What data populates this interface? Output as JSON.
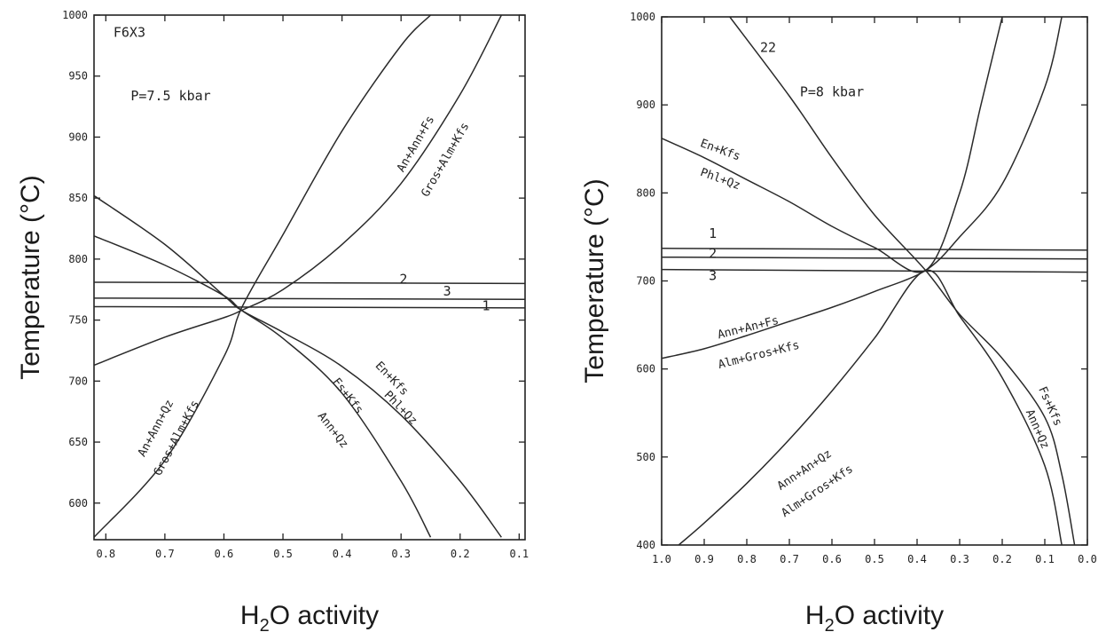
{
  "chart_data": [
    {
      "type": "line",
      "title": "",
      "xlabel_main": "H",
      "xlabel_sub": "2",
      "xlabel_rest": "O activity",
      "ylabel": "Temperature (°C)",
      "xlim": [
        0.82,
        0.09
      ],
      "ylim": [
        570,
        1000
      ],
      "x_ticks": [
        0.8,
        0.7,
        0.6,
        0.5,
        0.4,
        0.3,
        0.2,
        0.1
      ],
      "x_tick_labels": [
        "0.8",
        "0.7",
        "0.6",
        "0.5",
        "0.4",
        "0.3",
        "0.2",
        "0.1"
      ],
      "y_ticks": [
        600,
        650,
        700,
        750,
        800,
        850,
        900,
        950,
        1000
      ],
      "y_tick_labels": [
        "600",
        "650",
        "700",
        "750",
        "800",
        "850",
        "900",
        "950",
        "1000"
      ],
      "annotations": [
        {
          "text": "F6X3",
          "x": 0.76,
          "y": 982,
          "rotate": 0,
          "cls": "inner"
        },
        {
          "text": "P=7.5 kbar",
          "x": 0.69,
          "y": 930,
          "rotate": 0,
          "cls": "inner"
        },
        {
          "text": "2",
          "x": 0.296,
          "y": 780,
          "rotate": 0,
          "cls": "inner"
        },
        {
          "text": "3",
          "x": 0.222,
          "y": 770,
          "rotate": 0,
          "cls": "inner"
        },
        {
          "text": "1",
          "x": 0.156,
          "y": 758,
          "rotate": 0,
          "cls": "inner"
        },
        {
          "text": "An+Ann+Fs",
          "x": 0.27,
          "y": 893,
          "rotate": -60,
          "cls": "rxn"
        },
        {
          "text": "Gros+Alm+Kfs",
          "x": 0.22,
          "y": 880,
          "rotate": -60,
          "cls": "rxn"
        },
        {
          "text": "An+Ann+Qz",
          "x": 0.71,
          "y": 660,
          "rotate": -62,
          "cls": "rxn"
        },
        {
          "text": "Gros+Alm+Kfs",
          "x": 0.675,
          "y": 652,
          "rotate": -62,
          "cls": "rxn"
        },
        {
          "text": "Fs+Kfs",
          "x": 0.395,
          "y": 686,
          "rotate": 52,
          "cls": "rxn"
        },
        {
          "text": "Ann+Qz",
          "x": 0.42,
          "y": 658,
          "rotate": 52,
          "cls": "rxn"
        },
        {
          "text": "En+Kfs",
          "x": 0.32,
          "y": 700,
          "rotate": 46,
          "cls": "rxn"
        },
        {
          "text": "Phl+Qz",
          "x": 0.305,
          "y": 676,
          "rotate": 46,
          "cls": "rxn"
        }
      ],
      "series": [
        {
          "x": [
            0.82,
            0.09
          ],
          "y": [
            781,
            780
          ]
        },
        {
          "x": [
            0.82,
            0.09
          ],
          "y": [
            768,
            767
          ]
        },
        {
          "x": [
            0.82,
            0.09
          ],
          "y": [
            761,
            760
          ]
        },
        {
          "x": [
            0.82,
            0.7,
            0.6,
            0.57,
            0.5,
            0.4,
            0.3,
            0.25
          ],
          "y": [
            572,
            635,
            720,
            760,
            820,
            905,
            975,
            1000
          ]
        },
        {
          "x": [
            0.82,
            0.7,
            0.6,
            0.57,
            0.5,
            0.4,
            0.3,
            0.2,
            0.13
          ],
          "y": [
            713,
            736,
            752,
            758,
            775,
            812,
            862,
            935,
            1000
          ]
        },
        {
          "x": [
            0.82,
            0.7,
            0.6,
            0.57,
            0.5,
            0.4,
            0.3,
            0.25
          ],
          "y": [
            819,
            795,
            770,
            758,
            735,
            690,
            618,
            572
          ]
        },
        {
          "x": [
            0.82,
            0.7,
            0.6,
            0.57,
            0.5,
            0.4,
            0.3,
            0.2,
            0.13
          ],
          "y": [
            852,
            812,
            770,
            758,
            740,
            712,
            672,
            618,
            572
          ]
        }
      ]
    },
    {
      "type": "line",
      "title": "",
      "xlabel_main": "H",
      "xlabel_sub": "2",
      "xlabel_rest": "O activity",
      "ylabel": "Temperature (°C)",
      "xlim": [
        1.0,
        0.0
      ],
      "ylim": [
        400,
        1000
      ],
      "x_ticks": [
        1.0,
        0.9,
        0.8,
        0.7,
        0.6,
        0.5,
        0.4,
        0.3,
        0.2,
        0.1,
        0.0
      ],
      "x_tick_labels": [
        "1.0",
        "0.9",
        "0.8",
        "0.7",
        "0.6",
        "0.5",
        "0.4",
        "0.3",
        "0.2",
        "0.1",
        "0.0"
      ],
      "y_ticks": [
        400,
        500,
        600,
        700,
        800,
        900,
        1000
      ],
      "y_tick_labels": [
        "400",
        "500",
        "600",
        "700",
        "800",
        "900",
        "1000"
      ],
      "annotations": [
        {
          "text": "22",
          "x": 0.75,
          "y": 960,
          "rotate": 0,
          "cls": "inner"
        },
        {
          "text": "P=8 kbar",
          "x": 0.6,
          "y": 910,
          "rotate": 0,
          "cls": "inner"
        },
        {
          "text": "1",
          "x": 0.88,
          "y": 749,
          "rotate": 0,
          "cls": "inner"
        },
        {
          "text": "2",
          "x": 0.88,
          "y": 726,
          "rotate": 0,
          "cls": "inner"
        },
        {
          "text": "3",
          "x": 0.88,
          "y": 701,
          "rotate": 0,
          "cls": "inner"
        },
        {
          "text": "En+Kfs",
          "x": 0.865,
          "y": 845,
          "rotate": 20,
          "cls": "rxn"
        },
        {
          "text": "Phl+Qz",
          "x": 0.865,
          "y": 812,
          "rotate": 20,
          "cls": "rxn"
        },
        {
          "text": "Ann+An+Fs",
          "x": 0.795,
          "y": 643,
          "rotate": -14,
          "cls": "rxn"
        },
        {
          "text": "Alm+Gros+Kfs",
          "x": 0.77,
          "y": 612,
          "rotate": -14,
          "cls": "rxn"
        },
        {
          "text": "Ann+An+Qz",
          "x": 0.66,
          "y": 482,
          "rotate": -34,
          "cls": "rxn"
        },
        {
          "text": "Alm+Gros+Kfs",
          "x": 0.63,
          "y": 458,
          "rotate": -34,
          "cls": "rxn"
        },
        {
          "text": "Fs+Kfs",
          "x": 0.095,
          "y": 556,
          "rotate": 66,
          "cls": "rxn"
        },
        {
          "text": "Ann+Qz",
          "x": 0.125,
          "y": 530,
          "rotate": 66,
          "cls": "rxn"
        }
      ],
      "series": [
        {
          "x": [
            1.0,
            0.0
          ],
          "y": [
            737,
            735
          ]
        },
        {
          "x": [
            1.0,
            0.0
          ],
          "y": [
            727,
            725
          ]
        },
        {
          "x": [
            1.0,
            0.0
          ],
          "y": [
            713,
            710
          ]
        },
        {
          "x": [
            1.0,
            0.9,
            0.8,
            0.7,
            0.6,
            0.5,
            0.38,
            0.3,
            0.25,
            0.2
          ],
          "y": [
            862,
            840,
            815,
            790,
            762,
            738,
            712,
            800,
            900,
            1000
          ]
        },
        {
          "x": [
            0.84,
            0.7,
            0.6,
            0.5,
            0.38,
            0.3,
            0.2,
            0.1,
            0.06,
            0.03
          ],
          "y": [
            1000,
            910,
            840,
            775,
            712,
            662,
            612,
            545,
            480,
            400
          ]
        },
        {
          "x": [
            1.0,
            0.9,
            0.8,
            0.7,
            0.6,
            0.5,
            0.38,
            0.3,
            0.2,
            0.1,
            0.06
          ],
          "y": [
            612,
            623,
            638,
            654,
            670,
            688,
            712,
            750,
            810,
            920,
            1000
          ]
        },
        {
          "x": [
            0.96,
            0.9,
            0.8,
            0.7,
            0.6,
            0.5,
            0.38,
            0.3,
            0.2,
            0.1,
            0.06
          ],
          "y": [
            400,
            425,
            470,
            520,
            575,
            635,
            712,
            660,
            590,
            490,
            400
          ]
        }
      ]
    }
  ]
}
